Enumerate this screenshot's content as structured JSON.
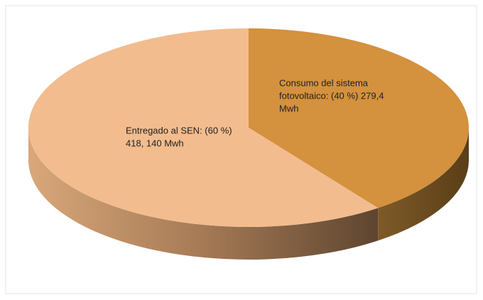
{
  "chart_data": {
    "type": "pie",
    "labels": [
      [
        "Entregado al SEN: (60 %)",
        "418, 140 Mwh"
      ],
      [
        "Consumo del sistema",
        "fotovoltaico: (40 %) 279,4",
        "Mwh"
      ]
    ],
    "values": [
      60,
      40
    ],
    "colors": [
      "#f2bc8e",
      "#d4913e"
    ]
  }
}
